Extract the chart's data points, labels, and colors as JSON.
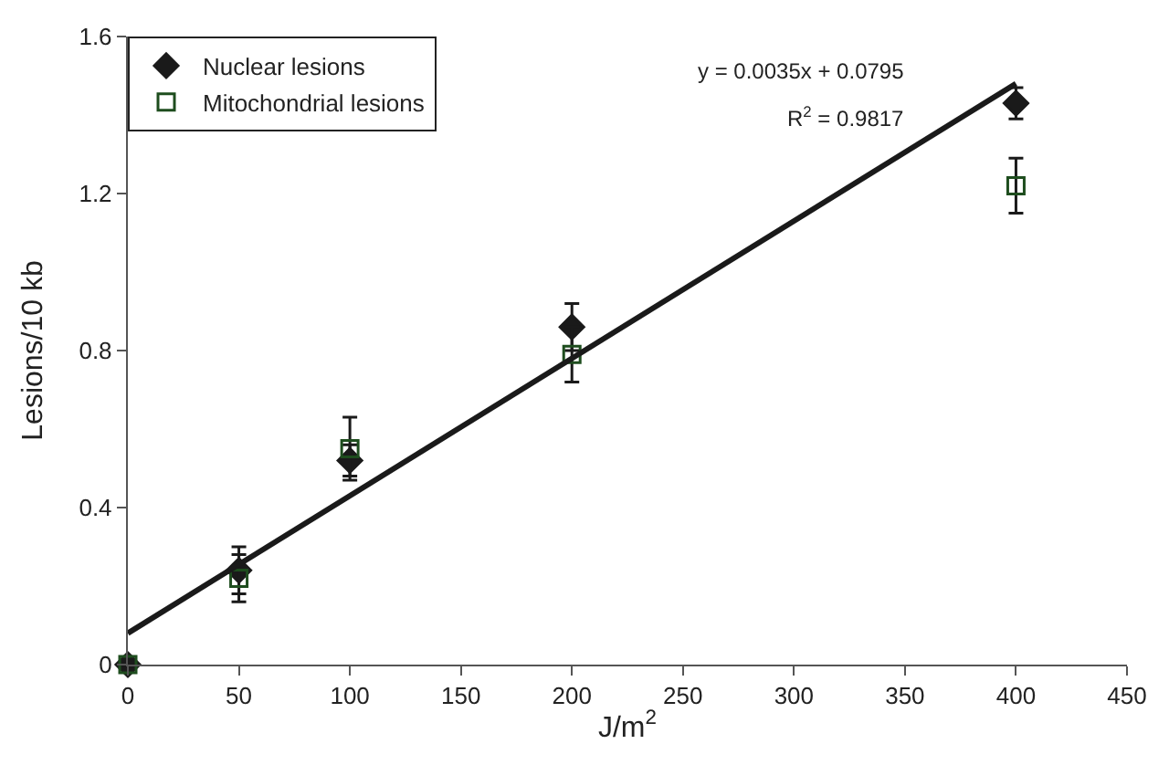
{
  "chart_data": {
    "type": "scatter",
    "xlabel": "J/m$^{2}$",
    "ylabel": "Lesions/10 kb",
    "x": [
      0,
      50,
      100,
      200,
      400
    ],
    "series": [
      {
        "name": "Nuclear lesions",
        "color": "#1a1a1a",
        "marker": "diamond",
        "values": [
          0,
          0.24,
          0.52,
          0.86,
          1.43
        ],
        "errors": [
          null,
          0.06,
          0.04,
          0.06,
          0.04
        ]
      },
      {
        "name": "Mitochondrial lesions",
        "color": "#1e4d1e",
        "marker": "square",
        "values": [
          0,
          0.22,
          0.55,
          0.79,
          1.22
        ],
        "errors": [
          null,
          0.06,
          0.08,
          0.07,
          0.07
        ]
      },
      {
        "type": "line",
        "color": "#1a1a1a",
        "x": [
          0,
          400
        ],
        "values": [
          0.08,
          1.48
        ]
      }
    ],
    "annotations": [
      "y = 0.0035x + 0.0795",
      "R$^{2}$ = 0.9817"
    ],
    "xlim": [
      0,
      450
    ],
    "xticks": [
      0,
      50,
      100,
      150,
      200,
      250,
      300,
      350,
      400,
      450
    ],
    "ylim": [
      0,
      1.6
    ],
    "yticks": [
      0,
      {
        "value": 0.4,
        "label": "0.4"
      },
      {
        "value": 0.8,
        "label": "0.8"
      },
      {
        "value": 1.2,
        "label": "1.2"
      },
      {
        "value": 1.6,
        "label": "1.6"
      }
    ],
    "legend": "top left"
  }
}
